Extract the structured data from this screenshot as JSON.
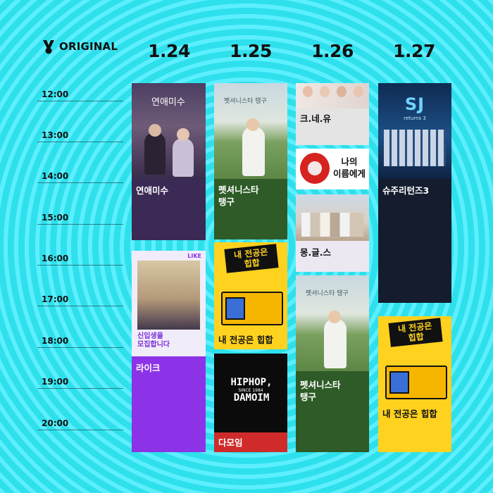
{
  "header": {
    "brand": "ORIGINAL"
  },
  "dates": [
    "1.24",
    "1.25",
    "1.26",
    "1.27"
  ],
  "times": [
    "12:00",
    "13:00",
    "14:00",
    "15:00",
    "16:00",
    "17:00",
    "18:00",
    "19:00",
    "20:00"
  ],
  "shows": [
    {
      "title": "연애미수",
      "poster_text": "연애미수",
      "bg_color": "#3b2a55",
      "text_color": "#ffffff",
      "day": "1.24",
      "start": "12:00"
    },
    {
      "title": "라이크",
      "poster_text": "신입생을\n모집합니다",
      "poster_badge": "LIKE",
      "bg_color": "#8c33e8",
      "text_color": "#ffffff",
      "day": "1.24",
      "start": "16:00"
    },
    {
      "title": "펫셔니스타\n탱구",
      "poster_text": "펫셔니스타 탱구",
      "bg_color": "#2e5b27",
      "text_color": "#ffffff",
      "day": "1.25",
      "start": "12:00"
    },
    {
      "title": "내 전공은 힙합",
      "poster_text": "내 전공은\n힙합",
      "bg_color": "#ffd21f",
      "text_color": "#111111",
      "day": "1.25",
      "start": "15:40"
    },
    {
      "title": "다모임",
      "poster_text": "HIPHOP,\nDAMOIM",
      "poster_subtext": "SINCE 1984",
      "bg_color": "#cf2b2b",
      "text_color": "#ffffff",
      "day": "1.25",
      "start": "18:30"
    },
    {
      "title": "크.네.유",
      "bg_color": "#e4e4e4",
      "text_color": "#111111",
      "day": "1.26",
      "start": "12:00"
    },
    {
      "title": "나의\n이름에게",
      "bg_color": "#ffffff",
      "text_color": "#111111",
      "day": "1.26",
      "start": "13:30"
    },
    {
      "title": "몽.글.스",
      "bg_color": "#ece8f2",
      "text_color": "#111111",
      "day": "1.26",
      "start": "14:30"
    },
    {
      "title": "펫셔니스타\n탱구",
      "poster_text": "펫셔니스타 탱구",
      "bg_color": "#2e5b27",
      "text_color": "#ffffff",
      "day": "1.26",
      "start": "16:30"
    },
    {
      "title": "슈주리턴즈3",
      "poster_text": "SJ",
      "poster_subtext": "returns 3",
      "bg_color": "#141c2e",
      "text_color": "#ffffff",
      "day": "1.27",
      "start": "12:00"
    },
    {
      "title": "내 전공은 힙합",
      "poster_text": "내 전공은\n힙합",
      "bg_color": "#ffd21f",
      "text_color": "#111111",
      "day": "1.27",
      "start": "17:30"
    }
  ]
}
